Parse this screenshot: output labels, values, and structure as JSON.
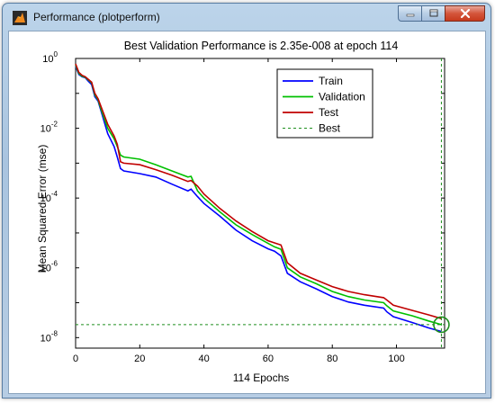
{
  "window": {
    "title": "Performance (plotperform)",
    "controls": {
      "minimize": "minimize-icon",
      "maximize": "maximize-icon",
      "close": "close-icon"
    }
  },
  "chart_data": {
    "type": "line",
    "title": "Best Validation Performance is 2.35e-008 at epoch 114",
    "xlabel": "114 Epochs",
    "ylabel": "Mean Squared Error  (mse)",
    "xlim": [
      0,
      115
    ],
    "ylim": [
      5e-09,
      1
    ],
    "yscale": "log",
    "grid": false,
    "legend_position": "top-right",
    "x_ticks": [
      {
        "value": 0,
        "label": "0"
      },
      {
        "value": 20,
        "label": "20"
      },
      {
        "value": 40,
        "label": "40"
      },
      {
        "value": 60,
        "label": "60"
      },
      {
        "value": 80,
        "label": "80"
      },
      {
        "value": 100,
        "label": "100"
      }
    ],
    "y_ticks": [
      {
        "value": 1,
        "base": "10",
        "exp": "0"
      },
      {
        "value": 0.01,
        "base": "10",
        "exp": "-2"
      },
      {
        "value": 0.0001,
        "base": "10",
        "exp": "-4"
      },
      {
        "value": 1e-06,
        "base": "10",
        "exp": "-6"
      },
      {
        "value": 1e-08,
        "base": "10",
        "exp": "-8"
      }
    ],
    "best": {
      "epoch": 114,
      "value": 2.35e-08,
      "color": "#1f8f1f"
    },
    "series": [
      {
        "name": "Train",
        "color": "#0000ff",
        "dash": false,
        "points": [
          [
            0,
            0.6
          ],
          [
            1,
            0.35
          ],
          [
            2,
            0.3
          ],
          [
            3,
            0.28
          ],
          [
            4,
            0.22
          ],
          [
            5,
            0.18
          ],
          [
            6,
            0.08
          ],
          [
            7,
            0.06
          ],
          [
            8,
            0.03
          ],
          [
            10,
            0.007
          ],
          [
            12,
            0.003
          ],
          [
            13,
            0.0015
          ],
          [
            14,
            0.0007
          ],
          [
            15,
            0.0006
          ],
          [
            20,
            0.0005
          ],
          [
            25,
            0.0004
          ],
          [
            30,
            0.00025
          ],
          [
            35,
            0.00016
          ],
          [
            36,
            0.00018
          ],
          [
            38,
            0.00011
          ],
          [
            40,
            7e-05
          ],
          [
            45,
            3e-05
          ],
          [
            50,
            1.2e-05
          ],
          [
            55,
            6e-06
          ],
          [
            60,
            3.5e-06
          ],
          [
            62,
            3e-06
          ],
          [
            64,
            2.2e-06
          ],
          [
            66,
            7e-07
          ],
          [
            70,
            4e-07
          ],
          [
            75,
            2.5e-07
          ],
          [
            80,
            1.5e-07
          ],
          [
            85,
            1.05e-07
          ],
          [
            90,
            8.5e-08
          ],
          [
            96,
            7e-08
          ],
          [
            97,
            5.5e-08
          ],
          [
            99,
            4e-08
          ],
          [
            105,
            2.7e-08
          ],
          [
            110,
            1.9e-08
          ],
          [
            114,
            1.5e-08
          ]
        ]
      },
      {
        "name": "Validation",
        "color": "#00c000",
        "dash": false,
        "points": [
          [
            0,
            0.65
          ],
          [
            1,
            0.37
          ],
          [
            2,
            0.31
          ],
          [
            3,
            0.29
          ],
          [
            4,
            0.24
          ],
          [
            5,
            0.2
          ],
          [
            6,
            0.09
          ],
          [
            7,
            0.065
          ],
          [
            8,
            0.034
          ],
          [
            10,
            0.01
          ],
          [
            12,
            0.005
          ],
          [
            13,
            0.003
          ],
          [
            14,
            0.0017
          ],
          [
            15,
            0.0015
          ],
          [
            20,
            0.0013
          ],
          [
            25,
            0.0009
          ],
          [
            30,
            0.0006
          ],
          [
            35,
            0.0004
          ],
          [
            36,
            0.00042
          ],
          [
            38,
            0.00016
          ],
          [
            40,
            0.0001
          ],
          [
            45,
            4e-05
          ],
          [
            50,
            1.7e-05
          ],
          [
            55,
            9e-06
          ],
          [
            60,
            5e-06
          ],
          [
            62,
            4e-06
          ],
          [
            64,
            3.4e-06
          ],
          [
            66,
            1e-06
          ],
          [
            70,
            5.5e-07
          ],
          [
            75,
            3.5e-07
          ],
          [
            80,
            2.1e-07
          ],
          [
            85,
            1.5e-07
          ],
          [
            90,
            1.2e-07
          ],
          [
            96,
            1e-07
          ],
          [
            97,
            8.2e-08
          ],
          [
            99,
            5.8e-08
          ],
          [
            105,
            4.2e-08
          ],
          [
            110,
            3e-08
          ],
          [
            114,
            2.35e-08
          ]
        ]
      },
      {
        "name": "Test",
        "color": "#c00000",
        "dash": false,
        "points": [
          [
            0,
            0.7
          ],
          [
            1,
            0.4
          ],
          [
            2,
            0.33
          ],
          [
            3,
            0.3
          ],
          [
            4,
            0.25
          ],
          [
            5,
            0.21
          ],
          [
            6,
            0.1
          ],
          [
            7,
            0.07
          ],
          [
            8,
            0.04
          ],
          [
            10,
            0.013
          ],
          [
            12,
            0.006
          ],
          [
            13,
            0.0035
          ],
          [
            14,
            0.0011
          ],
          [
            15,
            0.001
          ],
          [
            20,
            0.0009
          ],
          [
            25,
            0.00065
          ],
          [
            30,
            0.00045
          ],
          [
            35,
            0.0003
          ],
          [
            36,
            0.00032
          ],
          [
            38,
            0.00022
          ],
          [
            40,
            0.00013
          ],
          [
            45,
            5e-05
          ],
          [
            50,
            2.2e-05
          ],
          [
            55,
            1.1e-05
          ],
          [
            60,
            6e-06
          ],
          [
            62,
            5.2e-06
          ],
          [
            64,
            4.5e-06
          ],
          [
            66,
            1.4e-06
          ],
          [
            70,
            7e-07
          ],
          [
            75,
            4.5e-07
          ],
          [
            80,
            2.9e-07
          ],
          [
            85,
            2.1e-07
          ],
          [
            90,
            1.7e-07
          ],
          [
            96,
            1.4e-07
          ],
          [
            97,
            1.2e-07
          ],
          [
            99,
            8.5e-08
          ],
          [
            105,
            6e-08
          ],
          [
            110,
            4.5e-08
          ],
          [
            114,
            3.5e-08
          ]
        ]
      },
      {
        "name": "Best",
        "color": "#1f8f1f",
        "dash": true,
        "points": []
      }
    ]
  }
}
